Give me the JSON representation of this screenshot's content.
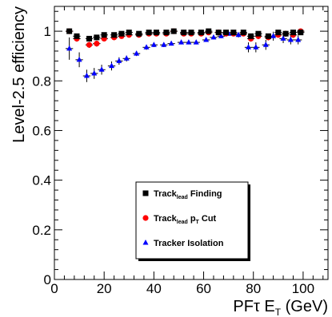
{
  "chart_data": {
    "type": "scatter",
    "xlabel": "PFτ E_T (GeV)",
    "ylabel": "Level-2.5 efficiency",
    "xlim": [
      0,
      110
    ],
    "ylim": [
      0,
      1.1
    ],
    "x_ticks": [
      "0",
      "20",
      "40",
      "60",
      "80",
      "100"
    ],
    "y_ticks": [
      "0",
      "0.2",
      "0.4",
      "0.6",
      "0.8",
      "1"
    ],
    "grid": false,
    "legend_position": "bottom-center",
    "x_bin_halfwidth": 1.5,
    "series": [
      {
        "name": "Track_lead Finding",
        "legend_main": "Track",
        "legend_sub": "lead",
        "legend_tail": "Finding",
        "color": "#000000",
        "marker": "square",
        "x": [
          6,
          9,
          14,
          17,
          20,
          24,
          27,
          30,
          34,
          38,
          41,
          45,
          48,
          52,
          55,
          59,
          62,
          66,
          69,
          72,
          76,
          79,
          82,
          86,
          90,
          93,
          96,
          99
        ],
        "y": [
          1.0,
          0.98,
          0.97,
          0.975,
          0.985,
          0.985,
          0.99,
          0.995,
          0.99,
          0.995,
          0.995,
          0.995,
          1.0,
          0.995,
          0.995,
          0.995,
          1.0,
          0.995,
          0.995,
          0.995,
          0.995,
          0.98,
          0.99,
          0.98,
          0.995,
          0.99,
          0.995,
          0.995
        ],
        "err": [
          0.005,
          0.01,
          0.01,
          0.01,
          0.008,
          0.008,
          0.006,
          0.005,
          0.005,
          0.005,
          0.005,
          0.005,
          0.004,
          0.005,
          0.005,
          0.005,
          0.004,
          0.005,
          0.005,
          0.005,
          0.005,
          0.01,
          0.01,
          0.01,
          0.008,
          0.01,
          0.01,
          0.008
        ]
      },
      {
        "name": "Track_lead p_T Cut",
        "legend_main": "Track",
        "legend_sub": "lead",
        "legend_tail": "p",
        "legend_tail_sub": "T",
        "legend_tail2": "Cut",
        "color": "#ff0000",
        "marker": "circle",
        "x": [
          6,
          9,
          14,
          17,
          20,
          24,
          27,
          30,
          34,
          38,
          41,
          45,
          48,
          52,
          55,
          59,
          62,
          66,
          69,
          72,
          76,
          79,
          82,
          86,
          90,
          93,
          96,
          99
        ],
        "y": [
          1.0,
          0.97,
          0.945,
          0.95,
          0.97,
          0.975,
          0.98,
          0.985,
          0.985,
          0.99,
          0.99,
          0.99,
          1.0,
          0.99,
          0.99,
          0.99,
          0.995,
          0.995,
          0.99,
          0.99,
          0.99,
          0.97,
          0.98,
          0.975,
          0.985,
          0.99,
          0.985,
          1.0
        ],
        "err": [
          0.005,
          0.012,
          0.012,
          0.012,
          0.01,
          0.01,
          0.008,
          0.006,
          0.006,
          0.006,
          0.006,
          0.006,
          0.004,
          0.006,
          0.006,
          0.006,
          0.005,
          0.005,
          0.006,
          0.006,
          0.006,
          0.012,
          0.012,
          0.012,
          0.01,
          0.012,
          0.012,
          0.008
        ]
      },
      {
        "name": "Tracker Isolation",
        "legend_main": "Tracker Isolation",
        "color": "#0000ff",
        "marker": "triangle",
        "x": [
          6,
          10,
          13,
          16,
          19,
          23,
          26,
          29,
          33,
          37,
          40,
          44,
          47,
          51,
          54,
          57,
          61,
          64,
          67,
          70,
          74,
          78,
          81,
          85,
          88,
          92,
          95,
          98
        ],
        "y": [
          0.93,
          0.885,
          0.82,
          0.83,
          0.845,
          0.86,
          0.88,
          0.89,
          0.91,
          0.935,
          0.945,
          0.945,
          0.95,
          0.955,
          0.955,
          0.955,
          0.965,
          0.975,
          0.98,
          0.99,
          0.985,
          0.935,
          0.935,
          0.945,
          0.98,
          0.97,
          0.965,
          0.965
        ],
        "err": [
          0.045,
          0.03,
          0.025,
          0.022,
          0.02,
          0.018,
          0.015,
          0.012,
          0.01,
          0.01,
          0.009,
          0.009,
          0.008,
          0.008,
          0.008,
          0.008,
          0.008,
          0.008,
          0.008,
          0.008,
          0.01,
          0.02,
          0.02,
          0.02,
          0.018,
          0.018,
          0.018,
          0.018
        ]
      }
    ]
  }
}
